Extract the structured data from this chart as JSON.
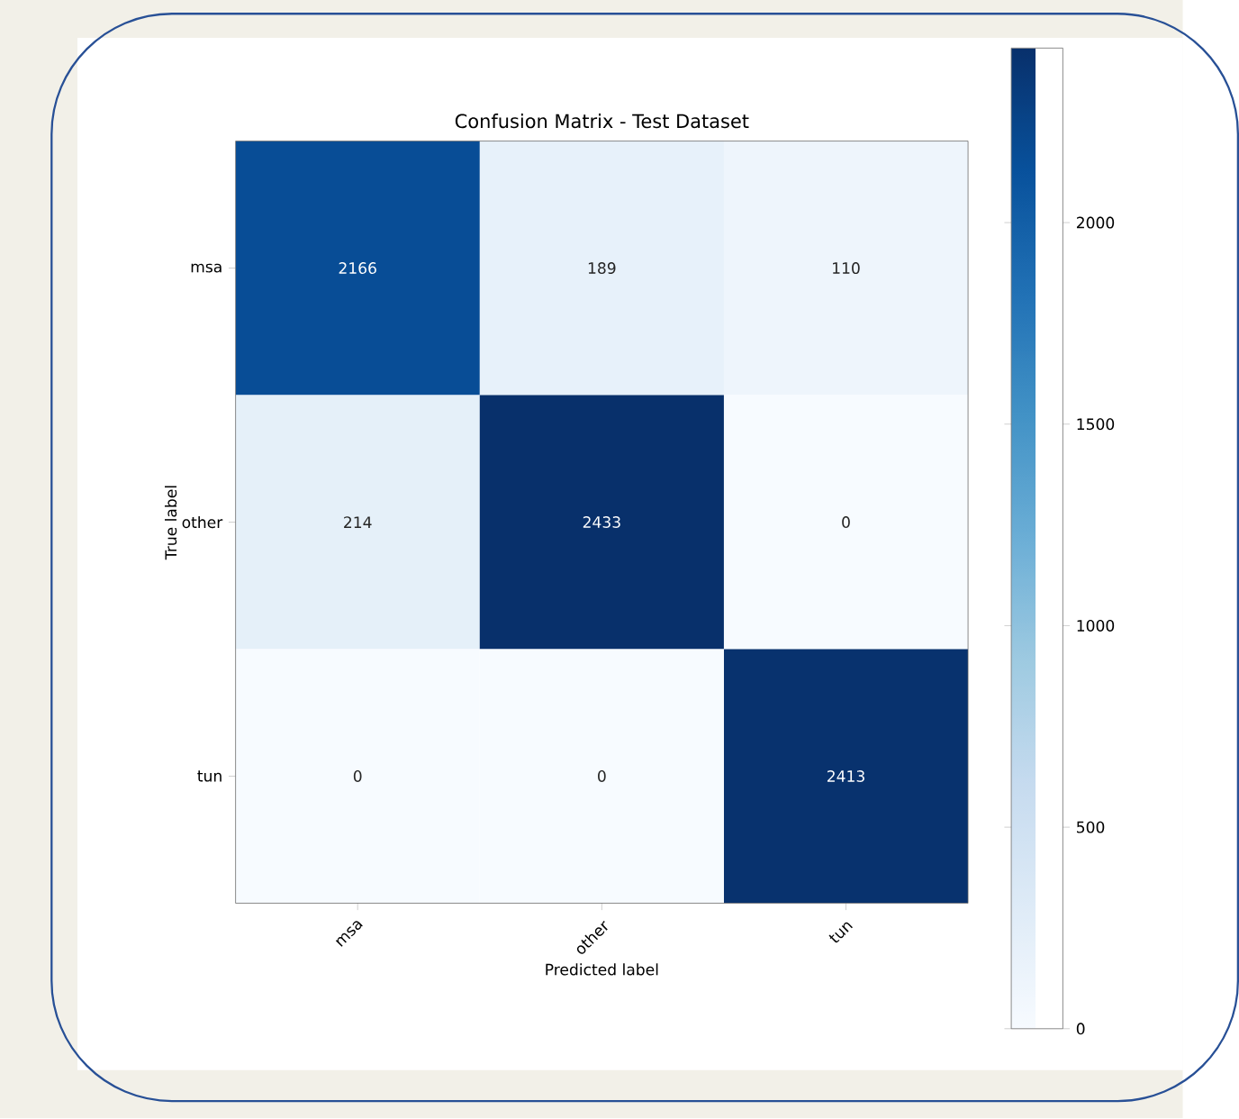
{
  "chart_data": {
    "type": "heatmap",
    "title": "Confusion Matrix - Test Dataset",
    "xlabel": "Predicted label",
    "ylabel": "True label",
    "categories": [
      "msa",
      "other",
      "tun"
    ],
    "y_categories": [
      "msa",
      "other",
      "tun"
    ],
    "cells": [
      [
        2166,
        189,
        110
      ],
      [
        214,
        2433,
        0
      ],
      [
        0,
        0,
        2413
      ]
    ],
    "clim": [
      0,
      2433
    ],
    "cticks": [
      0,
      500,
      1000,
      1500,
      2000
    ],
    "data_labels": true
  }
}
